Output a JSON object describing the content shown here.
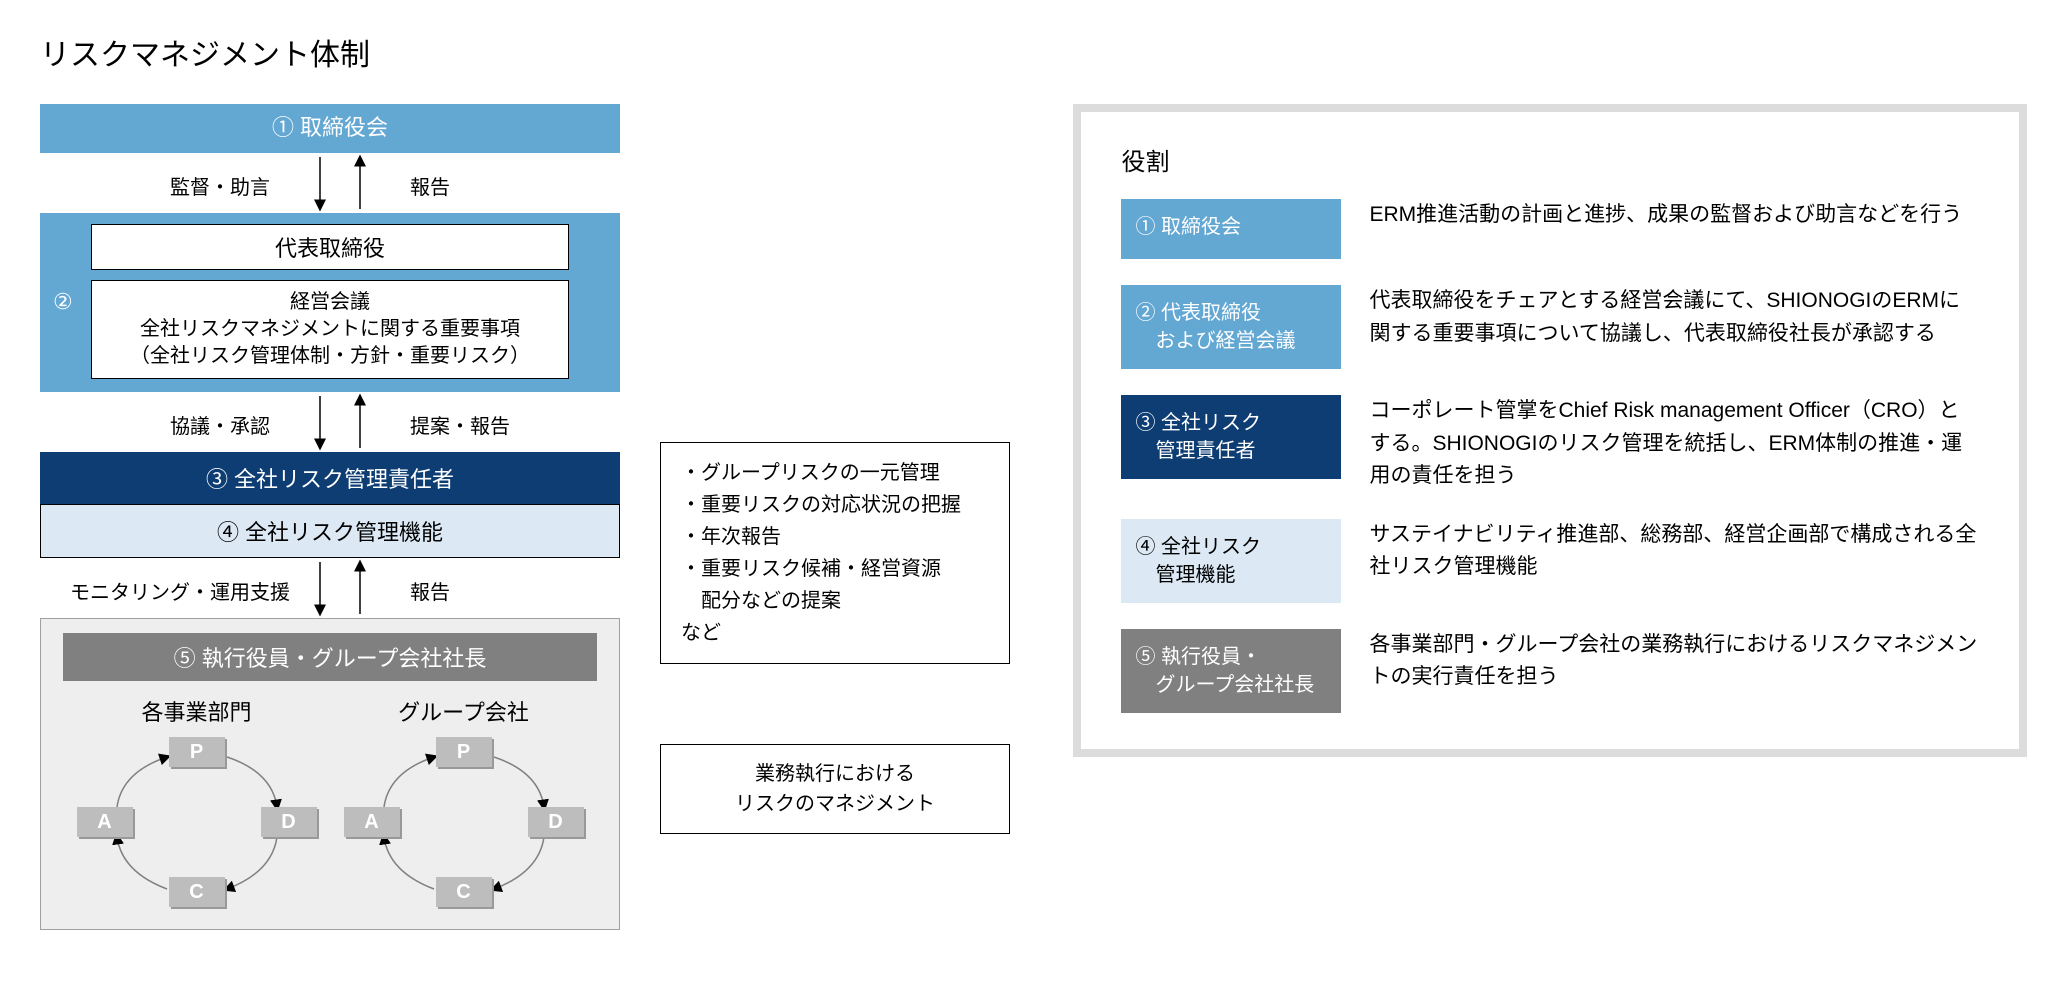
{
  "title": "リスクマネジメント体制",
  "flow": {
    "box1": "① 取締役会",
    "gap1_left": "監督・助言",
    "gap1_right": "報告",
    "box2_num": "②",
    "box2_inner1": "代表取締役",
    "box2_inner2_l1": "経営会議",
    "box2_inner2_l2": "全社リスクマネジメントに関する重要事項",
    "box2_inner2_l3": "（全社リスク管理体制・方針・重要リスク）",
    "gap2_left": "協議・承認",
    "gap2_right": "提案・報告",
    "box3": "③ 全社リスク管理責任者",
    "box4": "④ 全社リスク管理機能",
    "gap3_left": "モニタリング・運用支援",
    "gap3_right": "報告",
    "box5_bar": "⑤ 執行役員・グループ会社社長",
    "pdca_left_title": "各事業部門",
    "pdca_right_title": "グループ会社",
    "pdca": {
      "p": "P",
      "d": "D",
      "c": "C",
      "a": "A"
    }
  },
  "notes": {
    "n1_l1": "・グループリスクの一元管理",
    "n1_l2": "・重要リスクの対応状況の把握",
    "n1_l3": "・年次報告",
    "n1_l4": "・重要リスク候補・経営資源",
    "n1_l5": "　配分などの提案",
    "n1_l6": "など",
    "n2_l1": "業務執行における",
    "n2_l2": "リスクのマネジメント"
  },
  "roles": {
    "heading": "役割",
    "items": [
      {
        "label": "① 取締役会",
        "desc": "ERM推進活動の計画と進捗、成果の監督および助言などを行う",
        "cls": "rl-1"
      },
      {
        "label": "② 代表取締役\n　および経営会議",
        "desc": "代表取締役をチェアとする経営会議にて、SHIONOGIのERMに関する重要事項について協議し、代表取締役社長が承認する",
        "cls": "rl-2"
      },
      {
        "label": "③ 全社リスク\n　管理責任者",
        "desc": "コーポレート管掌をChief Risk management Officer（CRO）とする。SHIONOGIのリスク管理を統括し、ERM体制の推進・運用の責任を担う",
        "cls": "rl-3"
      },
      {
        "label": "④ 全社リスク\n　管理機能",
        "desc": "サステイナビリティ推進部、総務部、経営企画部で構成される全社リスク管理機能",
        "cls": "rl-4"
      },
      {
        "label": "⑤ 執行役員・\n　グループ会社社長",
        "desc": "各事業部門・グループ会社の業務執行におけるリスクマネジメントの実行責任を担う",
        "cls": "rl-5"
      }
    ]
  },
  "colors": {
    "blue_mid": "#63a7d3",
    "blue_dark": "#0d3d73",
    "blue_light": "#dce9f5",
    "gray_mid": "#808080",
    "gray_light": "#eeeeee",
    "gray_pdca": "#bdbdbd",
    "panel_border": "#dcdcdc"
  }
}
